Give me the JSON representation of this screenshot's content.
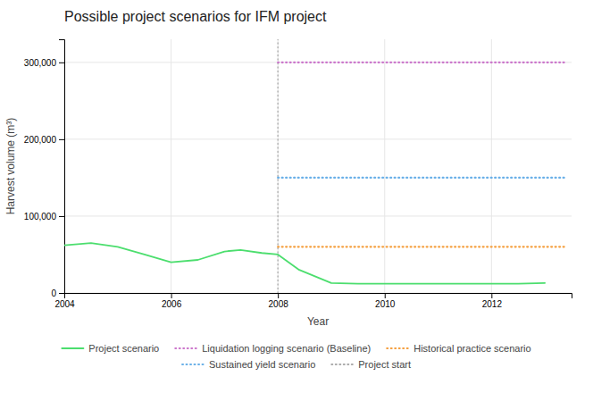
{
  "chart_data": {
    "type": "line",
    "title": "Possible project scenarios for IFM project",
    "xlabel": "Year",
    "ylabel": "Harvest volume (m³)",
    "xlim": [
      2004,
      2013.5
    ],
    "ylim": [
      0,
      330000
    ],
    "xticks": [
      2004,
      2006,
      2008,
      2010,
      2012
    ],
    "yticks": [
      0,
      {
        "value": 100000,
        "label": "100,000"
      },
      {
        "value": 200000,
        "label": "200,000"
      },
      {
        "value": 300000,
        "label": "300,000"
      }
    ],
    "grid": true,
    "legend": "bottom",
    "series": [
      {
        "name": "Project scenario",
        "color": "#4cde6e",
        "line_style": "solid",
        "x": [
          2004,
          2004.5,
          2005,
          2005.5,
          2006,
          2006.5,
          2007,
          2007.3,
          2007.7,
          2008,
          2008.4,
          2009,
          2009.5,
          2010,
          2010.5,
          2011,
          2011.5,
          2012,
          2012.5,
          2013
        ],
        "values": [
          62000,
          65000,
          60000,
          50000,
          40000,
          43000,
          54000,
          56000,
          52000,
          50000,
          30000,
          13000,
          12000,
          12000,
          12000,
          12000,
          12000,
          12000,
          12000,
          13000
        ]
      },
      {
        "name": "Liquidation logging scenario (Baseline)",
        "color": "#cc77cc",
        "line_style": "dotted",
        "x": [
          2008,
          2013.4
        ],
        "values": [
          300000,
          300000
        ]
      },
      {
        "name": "Historical practice scenario",
        "color": "#f5a040",
        "line_style": "dotted",
        "x": [
          2008,
          2013.4
        ],
        "values": [
          60000,
          60000
        ]
      },
      {
        "name": "Sustained yield scenario",
        "color": "#6ab0e8",
        "line_style": "dotted",
        "x": [
          2008,
          2013.4
        ],
        "values": [
          150000,
          150000
        ]
      }
    ],
    "reference_lines": [
      {
        "name": "Project start",
        "x": 2008,
        "color": "#aaaaaa",
        "line_style": "dotted"
      }
    ]
  }
}
